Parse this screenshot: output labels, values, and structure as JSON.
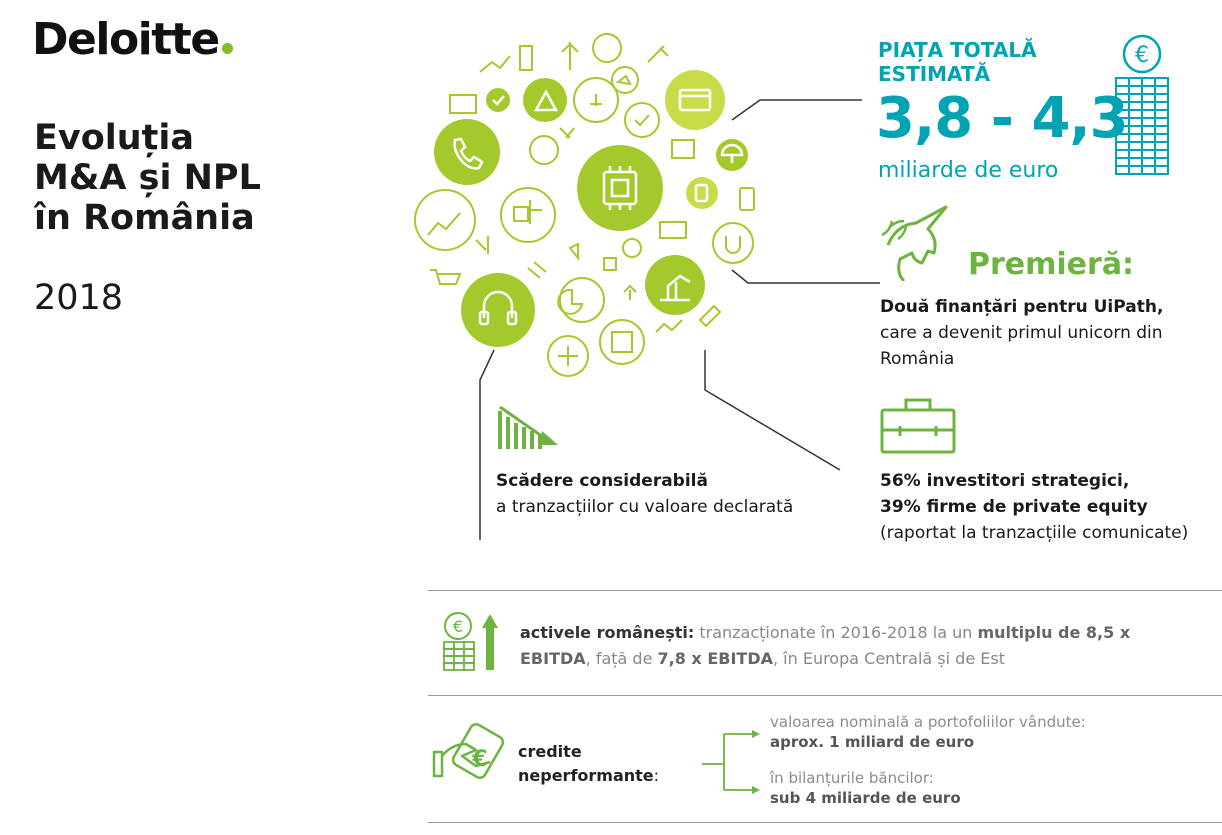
{
  "header": {
    "logo_text": "Deloitte",
    "logo_dot_color": "#86bc25",
    "title_lines": [
      "Evoluția",
      "M&A și NPL",
      "în România"
    ],
    "year": "2018"
  },
  "colors": {
    "accent_green": "#86bc25",
    "teal": "#00a3b4",
    "dark_green": "#6cb33f"
  },
  "market": {
    "title_line1": "PIAȚA TOTALĂ",
    "title_line2": "ESTIMATĂ",
    "range": "3,8 - 4,3",
    "unit": "miliarde de euro",
    "icon": "euro-coin-stack-icon"
  },
  "premiere": {
    "label": "Premieră:",
    "icon": "unicorn-icon",
    "bold": "Două finanțări pentru UiPath,",
    "rest": " care a devenit primul unicorn din România"
  },
  "decline": {
    "icon": "declining-bar-chart-icon",
    "bold": "Scădere considerabilă",
    "rest": "a tranzacțiilor cu valoare declarată"
  },
  "investors": {
    "icon": "briefcase-icon",
    "line1": "56% investitori strategici,",
    "line2": "39% firme de private equity",
    "rest": "(raportat la tranzacțiile comunicate)"
  },
  "assets": {
    "icon": "euro-growth-icon",
    "key": "activele românești:",
    "t1": " tranzacționate în 2016-2018 la un ",
    "m1": "multiplu de 8,5 x EBITDA",
    "t2": ", față de ",
    "m2": "7,8 x EBITDA",
    "t3": ", în Europa Centrală și de Est"
  },
  "npl": {
    "icon": "hand-euro-card-icon",
    "label_line1": "credite",
    "label_line2": "neperformante",
    "colon": ":",
    "items": [
      {
        "note": "valoarea nominală a portofoliilor vândute:",
        "value": "aprox. 1 miliard de euro"
      },
      {
        "note": "în bilanțurile băncilor:",
        "value": "sub 4 miliarde de euro"
      }
    ]
  }
}
